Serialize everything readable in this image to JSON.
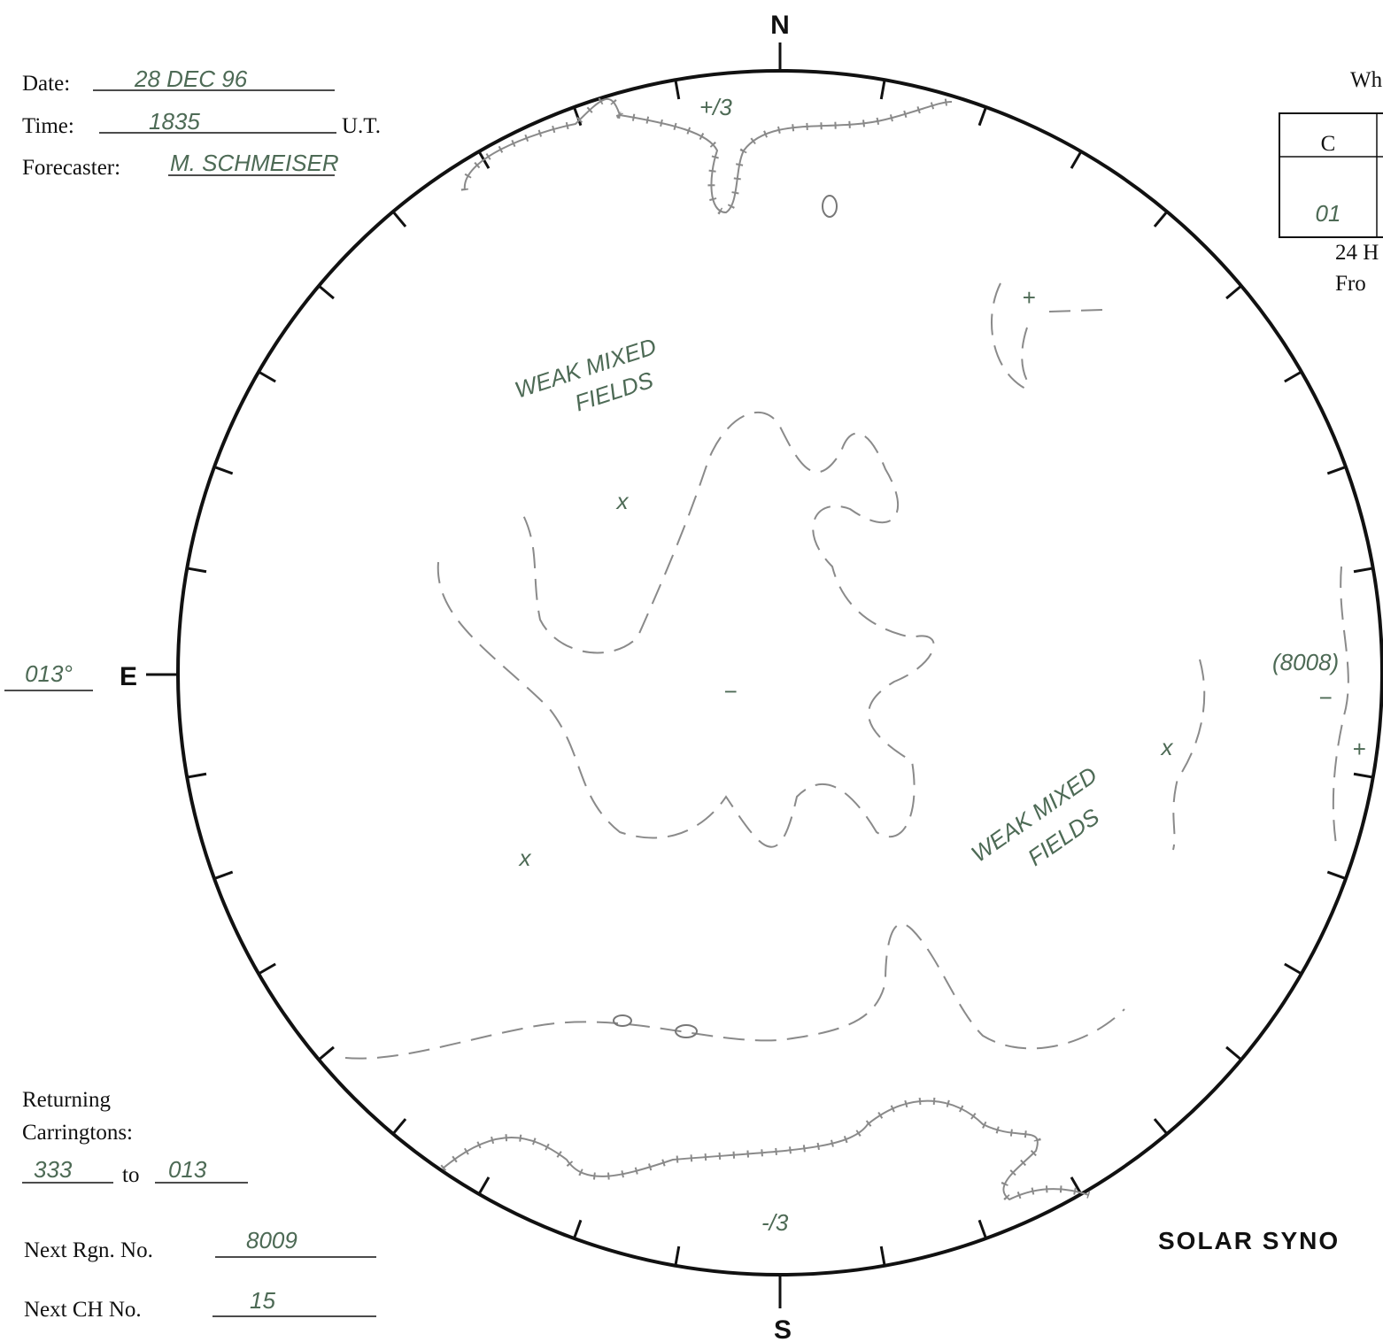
{
  "header": {
    "date_label": "Date:",
    "date": "28 DEC 96",
    "time_label": "Time:",
    "time": "1835",
    "time_unit": "U.T.",
    "forecaster_label": "Forecaster:",
    "forecaster": "M. SCHMEISER"
  },
  "compass": {
    "north": "N",
    "south": "S",
    "east": "E",
    "east_longitude": "013°"
  },
  "returning": {
    "label_line1": "Returning",
    "label_line2": "Carringtons:",
    "from": "333",
    "to_label": "to",
    "to": "013"
  },
  "next_region": {
    "label": "Next Rgn. No.",
    "value": "8009"
  },
  "next_ch": {
    "label": "Next CH No.",
    "value": "15"
  },
  "table": {
    "title": "Wh",
    "header": [
      "C"
    ],
    "rows": [
      [
        "01"
      ]
    ]
  },
  "forecast_note": {
    "line1": "24 H",
    "line2": "Fro"
  },
  "footer_title": "SOLAR SYNO",
  "annotations": {
    "north_ch": "+/3",
    "south_ch": "-/3",
    "weak_fields_1": [
      "WEAK MIXED",
      "FIELDS"
    ],
    "weak_fields_2": [
      "WEAK MIXED",
      "FIELDS"
    ],
    "old_region": "(8008)",
    "polarity_marks": [
      "+",
      "−",
      "−",
      "+",
      "x",
      "x",
      "x"
    ]
  }
}
